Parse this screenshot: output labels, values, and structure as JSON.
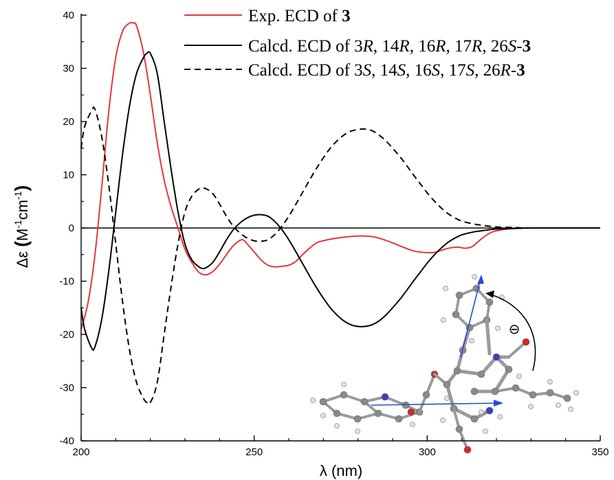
{
  "chart_data": {
    "type": "line",
    "xlabel": "λ (nm)",
    "ylabel": {
      "prefix": "Δε ",
      "paren_open": "(",
      "m": "M",
      "sup1": "-1",
      "cm": "cm",
      "sup2": "-1",
      "paren_close": ")"
    },
    "xlim": [
      200,
      350
    ],
    "ylim": [
      -40,
      40
    ],
    "x_ticks": [
      200,
      250,
      300,
      350
    ],
    "y_ticks": [
      -40,
      -30,
      -20,
      -10,
      0,
      10,
      20,
      30,
      40
    ],
    "zero_line": true,
    "grid": false,
    "legend_position": "top-right",
    "series": [
      {
        "legend": {
          "a": "Exp. ECD of ",
          "b": "3"
        },
        "color": "#e8343c",
        "dash": "solid",
        "points": [
          [
            200,
            -19
          ],
          [
            202,
            -14
          ],
          [
            204,
            -5
          ],
          [
            206,
            8
          ],
          [
            208,
            22
          ],
          [
            210,
            32
          ],
          [
            212,
            37
          ],
          [
            214,
            38.5
          ],
          [
            215,
            38.5
          ],
          [
            216,
            38
          ],
          [
            218,
            33
          ],
          [
            220,
            25
          ],
          [
            222,
            16
          ],
          [
            224,
            9
          ],
          [
            226,
            4
          ],
          [
            228,
            0
          ],
          [
            230,
            -4
          ],
          [
            232,
            -6.5
          ],
          [
            234,
            -8.3
          ],
          [
            236,
            -8.8
          ],
          [
            238,
            -8.2
          ],
          [
            240,
            -6.8
          ],
          [
            242,
            -5
          ],
          [
            244,
            -3.3
          ],
          [
            246,
            -2.3
          ],
          [
            247,
            -2.3
          ],
          [
            248,
            -3
          ],
          [
            250,
            -4.5
          ],
          [
            252,
            -6
          ],
          [
            254,
            -7
          ],
          [
            256,
            -7.3
          ],
          [
            258,
            -7.2
          ],
          [
            260,
            -7
          ],
          [
            262,
            -6.3
          ],
          [
            264,
            -5
          ],
          [
            266,
            -3.8
          ],
          [
            268,
            -2.8
          ],
          [
            270,
            -2.4
          ],
          [
            272,
            -2.1
          ],
          [
            275,
            -1.8
          ],
          [
            278,
            -1.6
          ],
          [
            281,
            -1.5
          ],
          [
            284,
            -1.6
          ],
          [
            287,
            -2.1
          ],
          [
            290,
            -2.8
          ],
          [
            293,
            -3.6
          ],
          [
            296,
            -4.3
          ],
          [
            299,
            -4.6
          ],
          [
            302,
            -4.6
          ],
          [
            305,
            -4
          ],
          [
            307,
            -3.7
          ],
          [
            309,
            -3.6
          ],
          [
            311,
            -3.8
          ],
          [
            313,
            -3.5
          ],
          [
            315,
            -2.4
          ],
          [
            317,
            -1.4
          ],
          [
            319,
            -0.7
          ],
          [
            322,
            -0.3
          ],
          [
            325,
            -0.1
          ],
          [
            330,
            0
          ],
          [
            350,
            0
          ]
        ]
      },
      {
        "legend": {
          "a": "Calcd. ECD of 3",
          "ai": "R",
          "b": ", 14",
          "bi": "R",
          "c": ", 16",
          "ci": "R",
          "d": ", 17",
          "di": "R",
          "e": ", 26",
          "ei": "S",
          "f": "-",
          "g": "3"
        },
        "color": "#000000",
        "dash": "solid",
        "points": [
          [
            200,
            -15
          ],
          [
            201,
            -19
          ],
          [
            203,
            -22.5
          ],
          [
            204,
            -22.3
          ],
          [
            206,
            -17
          ],
          [
            208,
            -8
          ],
          [
            210,
            3
          ],
          [
            212,
            14
          ],
          [
            214,
            23
          ],
          [
            216,
            29
          ],
          [
            218,
            32
          ],
          [
            219,
            32.8
          ],
          [
            220,
            32.8
          ],
          [
            222,
            29
          ],
          [
            224,
            20
          ],
          [
            226,
            11
          ],
          [
            228,
            3
          ],
          [
            230,
            -3
          ],
          [
            232,
            -6
          ],
          [
            234,
            -7.3
          ],
          [
            235,
            -7.6
          ],
          [
            236,
            -7.5
          ],
          [
            238,
            -6.5
          ],
          [
            240,
            -4.5
          ],
          [
            242,
            -2.2
          ],
          [
            244,
            -0.3
          ],
          [
            246,
            1
          ],
          [
            248,
            1.9
          ],
          [
            250,
            2.4
          ],
          [
            252,
            2.5
          ],
          [
            254,
            2.2
          ],
          [
            256,
            1.2
          ],
          [
            258,
            -0.3
          ],
          [
            260,
            -2.2
          ],
          [
            262,
            -4.4
          ],
          [
            264,
            -6.7
          ],
          [
            266,
            -9
          ],
          [
            268,
            -11.2
          ],
          [
            270,
            -13.2
          ],
          [
            272,
            -15
          ],
          [
            274,
            -16.4
          ],
          [
            276,
            -17.5
          ],
          [
            278,
            -18.2
          ],
          [
            280,
            -18.5
          ],
          [
            282,
            -18.5
          ],
          [
            284,
            -18.2
          ],
          [
            286,
            -17.5
          ],
          [
            288,
            -16.4
          ],
          [
            290,
            -15
          ],
          [
            292,
            -13.5
          ],
          [
            294,
            -11.8
          ],
          [
            296,
            -10
          ],
          [
            298,
            -8.3
          ],
          [
            300,
            -6.6
          ],
          [
            302,
            -5.1
          ],
          [
            304,
            -3.8
          ],
          [
            306,
            -2.7
          ],
          [
            308,
            -1.9
          ],
          [
            310,
            -1.3
          ],
          [
            313,
            -0.8
          ],
          [
            316,
            -0.5
          ],
          [
            320,
            -0.2
          ],
          [
            325,
            -0.1
          ],
          [
            330,
            0
          ],
          [
            350,
            0
          ]
        ]
      },
      {
        "legend": {
          "a": "Calcd. ECD of 3",
          "ai": "S",
          "b": ", 14",
          "bi": "S",
          "c": ", 16",
          "ci": "S",
          "d": ", 17",
          "di": "S",
          "e": ", 26",
          "ei": "R",
          "f": "-",
          "g": "3"
        },
        "color": "#000000",
        "dash": "dashed",
        "points": [
          [
            200,
            15
          ],
          [
            201,
            19
          ],
          [
            203,
            22
          ],
          [
            204,
            22.3
          ],
          [
            206,
            17
          ],
          [
            208,
            8
          ],
          [
            210,
            -3
          ],
          [
            212,
            -14
          ],
          [
            214,
            -23
          ],
          [
            216,
            -29
          ],
          [
            218,
            -32
          ],
          [
            219,
            -32.8
          ],
          [
            220,
            -32.8
          ],
          [
            222,
            -29
          ],
          [
            224,
            -20
          ],
          [
            226,
            -11
          ],
          [
            228,
            -3
          ],
          [
            230,
            3
          ],
          [
            232,
            6
          ],
          [
            234,
            7.3
          ],
          [
            235,
            7.5
          ],
          [
            236,
            7.4
          ],
          [
            238,
            6.5
          ],
          [
            240,
            4.5
          ],
          [
            242,
            2.2
          ],
          [
            244,
            0.3
          ],
          [
            246,
            -1
          ],
          [
            248,
            -1.9
          ],
          [
            250,
            -2.4
          ],
          [
            252,
            -2.5
          ],
          [
            254,
            -2.2
          ],
          [
            256,
            -1.2
          ],
          [
            258,
            0.3
          ],
          [
            260,
            2.2
          ],
          [
            262,
            4.4
          ],
          [
            264,
            6.7
          ],
          [
            266,
            9
          ],
          [
            268,
            11.2
          ],
          [
            270,
            13.2
          ],
          [
            272,
            15
          ],
          [
            274,
            16.4
          ],
          [
            276,
            17.5
          ],
          [
            278,
            18.2
          ],
          [
            280,
            18.5
          ],
          [
            282,
            18.6
          ],
          [
            284,
            18.3
          ],
          [
            286,
            17.5
          ],
          [
            288,
            16.4
          ],
          [
            290,
            15
          ],
          [
            292,
            13.5
          ],
          [
            294,
            11.8
          ],
          [
            296,
            10
          ],
          [
            298,
            8.3
          ],
          [
            300,
            6.6
          ],
          [
            302,
            5.1
          ],
          [
            304,
            3.8
          ],
          [
            306,
            2.7
          ],
          [
            308,
            1.9
          ],
          [
            310,
            1.3
          ],
          [
            313,
            0.8
          ],
          [
            316,
            0.5
          ],
          [
            320,
            0.2
          ],
          [
            325,
            0.1
          ],
          [
            330,
            0
          ],
          [
            350,
            0
          ]
        ]
      }
    ],
    "inset": {
      "type": "molecular-structure-illustration",
      "annotation": "⊖",
      "atom_colors": {
        "carbon": "#8a8a8a",
        "hydrogen": "#e2e2e2",
        "nitrogen": "#3a3ec0",
        "oxygen": "#d0282a"
      },
      "vector_color": "#2b4ccf"
    }
  }
}
